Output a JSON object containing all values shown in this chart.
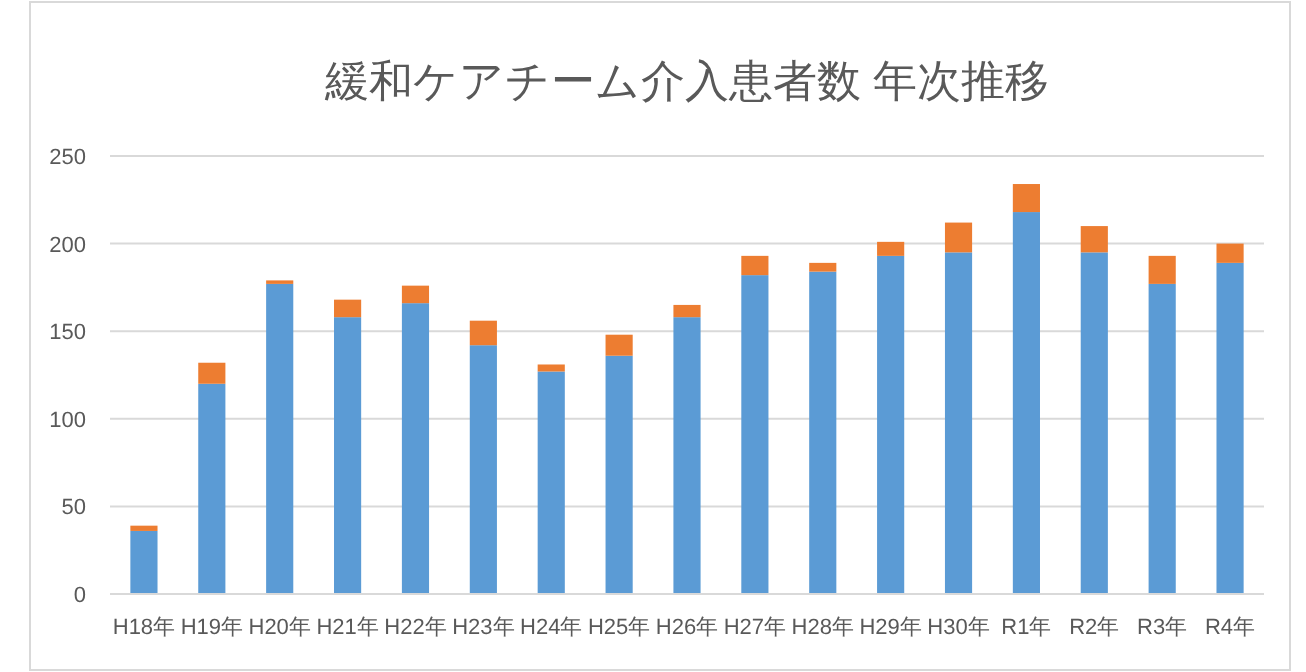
{
  "chart_data": {
    "type": "bar",
    "title": "緩和ケアチーム介入患者数 年次推移",
    "stacked": true,
    "categories": [
      "H18年",
      "H19年",
      "H20年",
      "H21年",
      "H22年",
      "H23年",
      "H24年",
      "H25年",
      "H26年",
      "H27年",
      "H28年",
      "H29年",
      "H30年",
      "R1年",
      "R2年",
      "R3年",
      "R4年"
    ],
    "series": [
      {
        "color": "#5b9bd5",
        "values": [
          36,
          120,
          177,
          158,
          166,
          142,
          127,
          136,
          158,
          182,
          184,
          193,
          195,
          218,
          195,
          177,
          189
        ]
      },
      {
        "color": "#ed7d31",
        "values": [
          3,
          12,
          2,
          10,
          10,
          14,
          4,
          12,
          7,
          11,
          5,
          8,
          17,
          16,
          15,
          16,
          11
        ]
      }
    ],
    "ylim": [
      0,
      250
    ],
    "yticks": [
      0,
      50,
      100,
      150,
      200,
      250
    ],
    "grid": "y"
  }
}
